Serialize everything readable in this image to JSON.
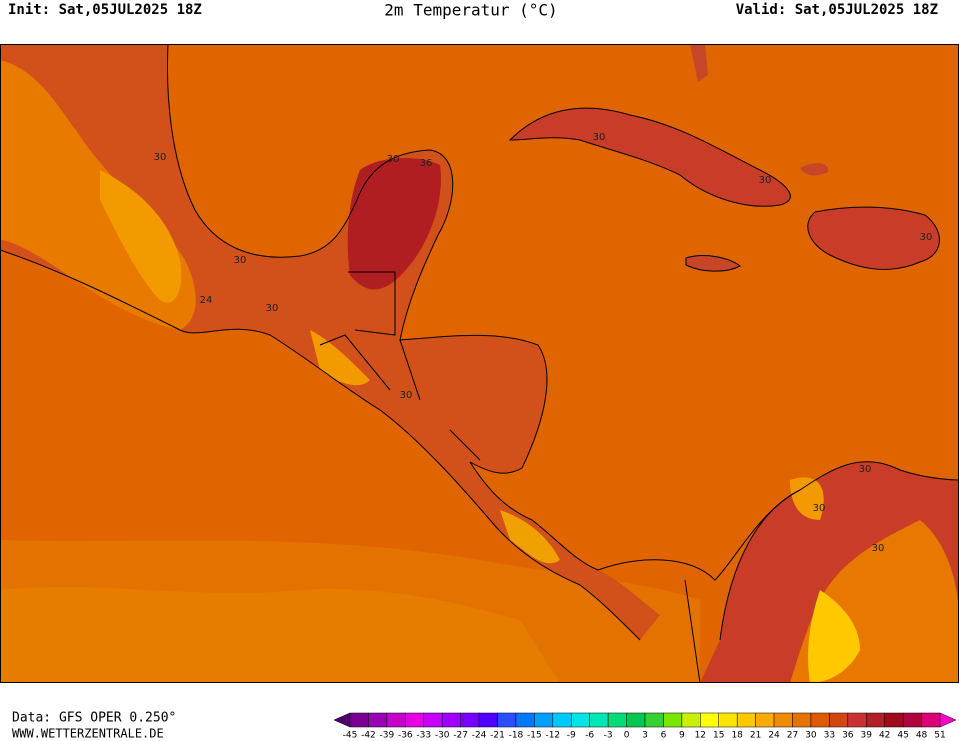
{
  "header": {
    "init": "Init: Sat,05JUL2025 18Z",
    "title": "2m Temperatur (°C)",
    "valid": "Valid: Sat,05JUL2025 18Z"
  },
  "map": {
    "contour_labels": [
      30,
      36,
      30,
      24,
      30,
      30,
      30,
      30,
      30,
      30,
      30,
      30,
      30
    ]
  },
  "footer": {
    "data_source": "Data: GFS OPER 0.250°",
    "website": "WWW.WETTERZENTRALE.DE"
  },
  "colorbar": {
    "ticks": [
      -45,
      -42,
      -39,
      -36,
      -33,
      -30,
      -27,
      -24,
      -21,
      -18,
      -15,
      -12,
      -9,
      -6,
      -3,
      0,
      3,
      6,
      9,
      12,
      15,
      18,
      21,
      24,
      27,
      30,
      33,
      36,
      39,
      42,
      45,
      48,
      51
    ],
    "colors": [
      "#50006e",
      "#780096",
      "#9b00b4",
      "#c800c8",
      "#e600e6",
      "#c800ff",
      "#a000ff",
      "#7800ff",
      "#5000ff",
      "#2850ff",
      "#0078ff",
      "#00a0ff",
      "#00c8ff",
      "#00e6e6",
      "#00e6b4",
      "#00dc78",
      "#00c850",
      "#32d232",
      "#78e600",
      "#c8f000",
      "#ffff00",
      "#ffe600",
      "#ffc800",
      "#ffaa00",
      "#f08c00",
      "#e67300",
      "#dc5a00",
      "#d24614",
      "#c83232",
      "#b41e28",
      "#a00a1e",
      "#b4003c",
      "#dc0078",
      "#ff00c8"
    ]
  }
}
